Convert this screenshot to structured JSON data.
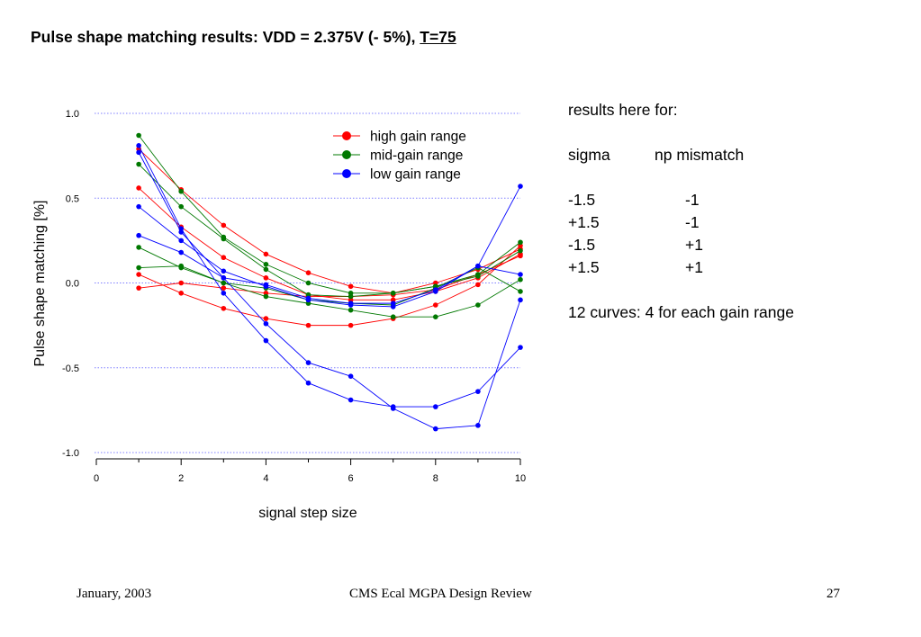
{
  "slide": {
    "title_main": "Pulse shape matching results: VDD = 2.375V (- 5%), ",
    "title_underlined": "T=75"
  },
  "notes": {
    "heading": "results here for:",
    "col_sigma": "sigma",
    "col_np": "np mismatch",
    "rows": [
      {
        "sigma": "-1.5",
        "np": "-1"
      },
      {
        "sigma": "+1.5",
        "np": "-1"
      },
      {
        "sigma": "-1.5",
        "np": "+1"
      },
      {
        "sigma": "+1.5",
        "np": "+1"
      }
    ],
    "summary": "12 curves: 4 for each gain range"
  },
  "footer": {
    "date": "January, 2003",
    "center": "CMS Ecal MGPA Design Review",
    "page": "27"
  },
  "colors": {
    "high": "#ff0000",
    "mid": "#007800",
    "low": "#0000ff",
    "grid": "#8080ff"
  },
  "chart_data": {
    "type": "line",
    "xlabel": "signal step size",
    "ylabel": "Pulse shape matching [%]",
    "xlim": [
      0,
      10
    ],
    "ylim": [
      -1.0,
      1.0
    ],
    "xticks": [
      0,
      2,
      4,
      6,
      8,
      10
    ],
    "xtick_labels": [
      "0",
      "2",
      "4",
      "6",
      "8",
      "10"
    ],
    "yticks": [
      1.0,
      0.5,
      0.0,
      -0.5,
      -1.0
    ],
    "ytick_labels": [
      "1.0",
      "0.5",
      "0.0",
      "-0.5",
      "-1.0"
    ],
    "grid": "horizontal dotted",
    "legend_position": "top-right",
    "legend": [
      {
        "label": "high gain range",
        "group": "high"
      },
      {
        "label": "mid-gain range",
        "group": "mid"
      },
      {
        "label": "low gain range",
        "group": "low"
      }
    ],
    "x": [
      1,
      2,
      3,
      4,
      5,
      6,
      7,
      8,
      9,
      10
    ],
    "series": [
      {
        "group": "high",
        "values": [
          0.56,
          0.33,
          0.15,
          0.03,
          -0.07,
          -0.1,
          -0.1,
          -0.05,
          0.03,
          0.17
        ]
      },
      {
        "group": "high",
        "values": [
          0.05,
          -0.06,
          -0.15,
          -0.21,
          -0.25,
          -0.25,
          -0.21,
          -0.13,
          -0.01,
          0.22
        ]
      },
      {
        "group": "high",
        "values": [
          -0.03,
          0.0,
          -0.03,
          -0.06,
          -0.08,
          -0.08,
          -0.07,
          -0.04,
          0.05,
          0.16
        ]
      },
      {
        "group": "high",
        "values": [
          0.79,
          0.55,
          0.34,
          0.17,
          0.06,
          -0.02,
          -0.06,
          0.0,
          0.08,
          0.2
        ]
      },
      {
        "group": "mid",
        "values": [
          0.87,
          0.54,
          0.27,
          0.11,
          0.0,
          -0.06,
          -0.06,
          -0.02,
          0.05,
          0.24
        ]
      },
      {
        "group": "mid",
        "values": [
          0.7,
          0.45,
          0.26,
          0.08,
          -0.07,
          -0.08,
          -0.06,
          -0.02,
          0.04,
          0.19
        ]
      },
      {
        "group": "mid",
        "values": [
          0.21,
          0.09,
          0.0,
          -0.08,
          -0.12,
          -0.16,
          -0.2,
          -0.2,
          -0.13,
          0.02
        ]
      },
      {
        "group": "mid",
        "values": [
          0.09,
          0.1,
          0.0,
          -0.03,
          -0.1,
          -0.12,
          -0.13,
          -0.03,
          0.09,
          -0.05
        ]
      },
      {
        "group": "low",
        "values": [
          0.81,
          0.32,
          -0.06,
          -0.34,
          -0.59,
          -0.69,
          -0.73,
          -0.73,
          -0.64,
          -0.38
        ]
      },
      {
        "group": "low",
        "values": [
          0.77,
          0.3,
          0.03,
          -0.24,
          -0.47,
          -0.55,
          -0.74,
          -0.86,
          -0.84,
          -0.1
        ]
      },
      {
        "group": "low",
        "values": [
          0.45,
          0.25,
          0.07,
          -0.02,
          -0.1,
          -0.13,
          -0.14,
          -0.05,
          0.1,
          0.57
        ]
      },
      {
        "group": "low",
        "values": [
          0.28,
          0.18,
          0.03,
          -0.01,
          -0.09,
          -0.12,
          -0.12,
          -0.04,
          0.1,
          0.05
        ]
      }
    ]
  }
}
